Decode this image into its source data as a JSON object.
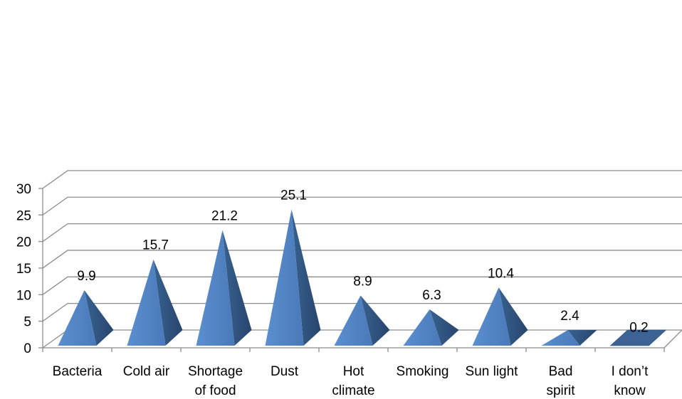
{
  "chart_data": {
    "type": "bar",
    "style": "3d-pyramid",
    "categories": [
      [
        "Bacteria"
      ],
      [
        "Cold air"
      ],
      [
        "Shortage",
        "of food"
      ],
      [
        "Dust"
      ],
      [
        "Hot",
        "climate"
      ],
      [
        "Smoking"
      ],
      [
        "Sun light"
      ],
      [
        "Bad",
        "spirit"
      ],
      [
        "I don’t",
        "know"
      ]
    ],
    "values": [
      9.9,
      15.7,
      21.2,
      25.1,
      8.9,
      6.3,
      10.4,
      2.4,
      0.2
    ],
    "data_labels": [
      "9.9",
      "15.7",
      "21.2",
      "25.1",
      "8.9",
      "6.3",
      "10.4",
      "2.4",
      "0.2"
    ],
    "y_ticks": [
      "0",
      "5",
      "10",
      "15",
      "20",
      "25",
      "30"
    ],
    "ylim": [
      0,
      30
    ],
    "grid": true,
    "legend": "none",
    "colors": {
      "front": "#4f81bd",
      "side": "#2e4f7a",
      "light": "#6a9ad6",
      "gridline": "#8c8c8c"
    }
  }
}
